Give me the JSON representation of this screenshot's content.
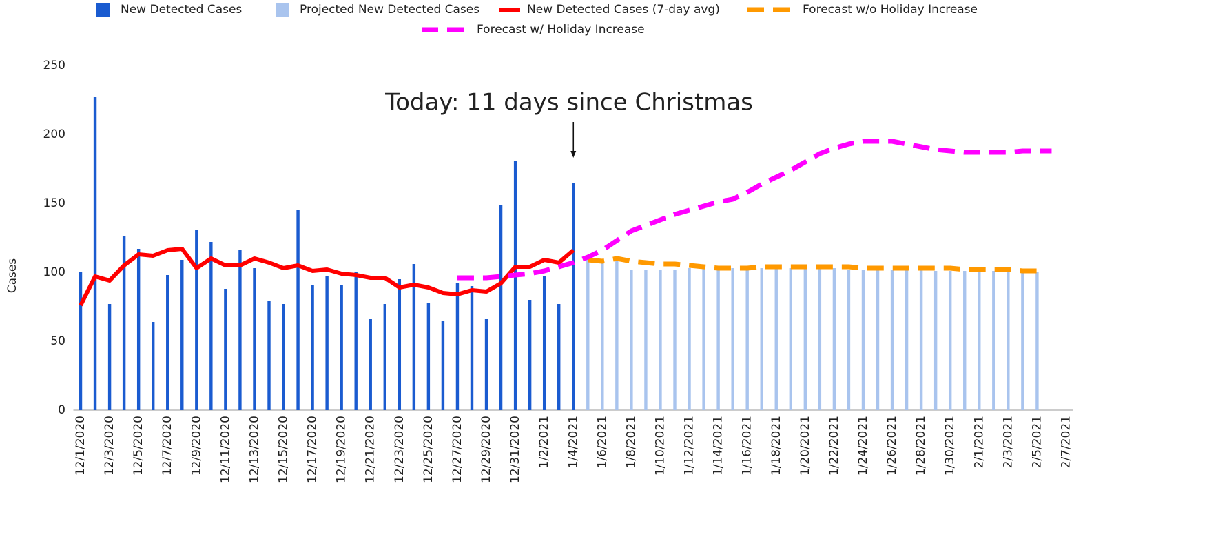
{
  "chart_data": {
    "type": "combo",
    "ylabel": "Cases",
    "annotation": {
      "text": "Today: 11 days since Christmas",
      "at": "1/4/2021"
    },
    "categories": [
      "12/1/2020",
      null,
      "12/3/2020",
      null,
      "12/5/2020",
      null,
      "12/7/2020",
      null,
      "12/9/2020",
      null,
      "12/11/2020",
      null,
      "12/13/2020",
      null,
      "12/15/2020",
      null,
      "12/17/2020",
      null,
      "12/19/2020",
      null,
      "12/21/2020",
      null,
      "12/23/2020",
      null,
      "12/25/2020",
      null,
      "12/27/2020",
      null,
      "12/29/2020",
      null,
      "12/31/2020",
      null,
      "1/2/2021",
      null,
      "1/4/2021",
      null,
      "1/6/2021",
      null,
      "1/8/2021",
      null,
      "1/10/2021",
      null,
      "1/12/2021",
      null,
      "1/14/2021",
      null,
      "1/16/2021",
      null,
      "1/18/2021",
      null,
      "1/20/2021",
      null,
      "1/22/2021",
      null,
      "1/24/2021",
      null,
      "1/26/2021",
      null,
      "1/28/2021",
      null,
      "1/30/2021",
      null,
      "2/1/2021",
      null,
      "2/3/2021",
      null,
      "2/5/2021",
      null,
      "2/7/2021"
    ],
    "series": [
      {
        "name": "New Detected Cases",
        "type": "bar",
        "color": "#1a5bd0",
        "values": [
          100,
          227,
          77,
          126,
          117,
          64,
          98,
          109,
          131,
          122,
          88,
          116,
          103,
          79,
          77,
          145,
          91,
          97,
          91,
          100,
          66,
          77,
          95,
          106,
          78,
          65,
          92,
          90,
          66,
          149,
          181,
          80,
          97,
          77,
          165,
          null,
          null,
          null,
          null,
          null,
          null,
          null,
          null,
          null,
          null,
          null,
          null,
          null,
          null,
          null,
          null,
          null,
          null,
          null,
          null,
          null,
          null,
          null,
          null,
          null,
          null,
          null,
          null,
          null,
          null,
          null,
          null,
          null,
          null
        ]
      },
      {
        "name": "Projected New Detected Cases",
        "type": "bar",
        "color": "#a9c4ee",
        "values": [
          null,
          null,
          null,
          null,
          null,
          null,
          null,
          null,
          null,
          null,
          null,
          null,
          null,
          null,
          null,
          null,
          null,
          null,
          null,
          null,
          null,
          null,
          null,
          null,
          null,
          null,
          null,
          null,
          null,
          null,
          null,
          null,
          null,
          null,
          null,
          109,
          108,
          112,
          102,
          102,
          102,
          102,
          103,
          103,
          103,
          103,
          103,
          103,
          103,
          103,
          103,
          103,
          103,
          102,
          102,
          102,
          102,
          102,
          102,
          101,
          101,
          101,
          101,
          101,
          101,
          100,
          100,
          null,
          null
        ]
      },
      {
        "name": "New Detected Cases (7-day avg)",
        "type": "line",
        "color": "#ff0000",
        "values": [
          76,
          97,
          94,
          105,
          113,
          112,
          116,
          117,
          103,
          110,
          105,
          105,
          110,
          107,
          103,
          105,
          101,
          102,
          99,
          98,
          96,
          96,
          89,
          91,
          89,
          85,
          84,
          87,
          86,
          92,
          104,
          104,
          109,
          107,
          116,
          null,
          null,
          null,
          null,
          null,
          null,
          null,
          null,
          null,
          null,
          null,
          null,
          null,
          null,
          null,
          null,
          null,
          null,
          null,
          null,
          null,
          null,
          null,
          null,
          null,
          null,
          null,
          null,
          null,
          null,
          null,
          null,
          null,
          null
        ]
      },
      {
        "name": "Forecast w/o Holiday Increase",
        "type": "line",
        "dashed": true,
        "color": "#ff9900",
        "values": [
          null,
          null,
          null,
          null,
          null,
          null,
          null,
          null,
          null,
          null,
          null,
          null,
          null,
          null,
          null,
          null,
          null,
          null,
          null,
          null,
          null,
          null,
          null,
          null,
          null,
          null,
          null,
          null,
          null,
          null,
          null,
          null,
          null,
          null,
          null,
          109,
          108,
          110,
          108,
          107,
          106,
          106,
          105,
          104,
          103,
          103,
          103,
          104,
          104,
          104,
          104,
          104,
          104,
          104,
          103,
          103,
          103,
          103,
          103,
          103,
          103,
          102,
          102,
          102,
          102,
          101,
          101,
          null,
          null
        ]
      },
      {
        "name": "Forecast w/ Holiday Increase",
        "type": "line",
        "dashed": true,
        "color": "#ff00ff",
        "values": [
          null,
          null,
          null,
          null,
          null,
          null,
          null,
          null,
          null,
          null,
          null,
          null,
          null,
          null,
          null,
          null,
          null,
          null,
          null,
          null,
          null,
          null,
          null,
          null,
          null,
          null,
          96,
          96,
          96,
          97,
          98,
          99,
          101,
          104,
          107,
          111,
          116,
          123,
          130,
          134,
          138,
          142,
          145,
          148,
          151,
          153,
          158,
          164,
          169,
          174,
          180,
          186,
          190,
          193,
          195,
          195,
          195,
          193,
          191,
          189,
          188,
          187,
          187,
          187,
          187,
          188,
          188,
          188,
          null
        ]
      }
    ],
    "ylim": [
      0,
      250
    ],
    "yticks": [
      0,
      50,
      100,
      150,
      200,
      250
    ],
    "grid": false,
    "legend": "top"
  }
}
